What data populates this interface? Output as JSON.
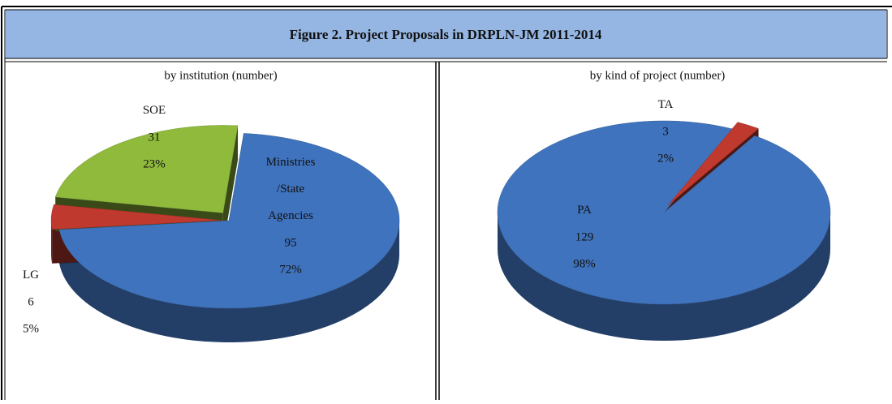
{
  "title": "Figure 2. Project Proposals in DRPLN-JM 2011-2014",
  "chart_data": [
    {
      "type": "pie",
      "subtitle": "by institution (number)",
      "categories": [
        "Ministries /State Agencies",
        "LG",
        "SOE"
      ],
      "values": [
        95,
        6,
        31
      ],
      "percent_labels": [
        "72%",
        "5%",
        "23%"
      ],
      "colors": [
        "#3f73bd",
        "#c0392f",
        "#8fba3c"
      ]
    },
    {
      "type": "pie",
      "subtitle": "by kind of project (number)",
      "categories": [
        "PA",
        "TA"
      ],
      "values": [
        129,
        3
      ],
      "percent_labels": [
        "98%",
        "2%"
      ],
      "colors": [
        "#3f73bd",
        "#c0392f"
      ]
    }
  ]
}
